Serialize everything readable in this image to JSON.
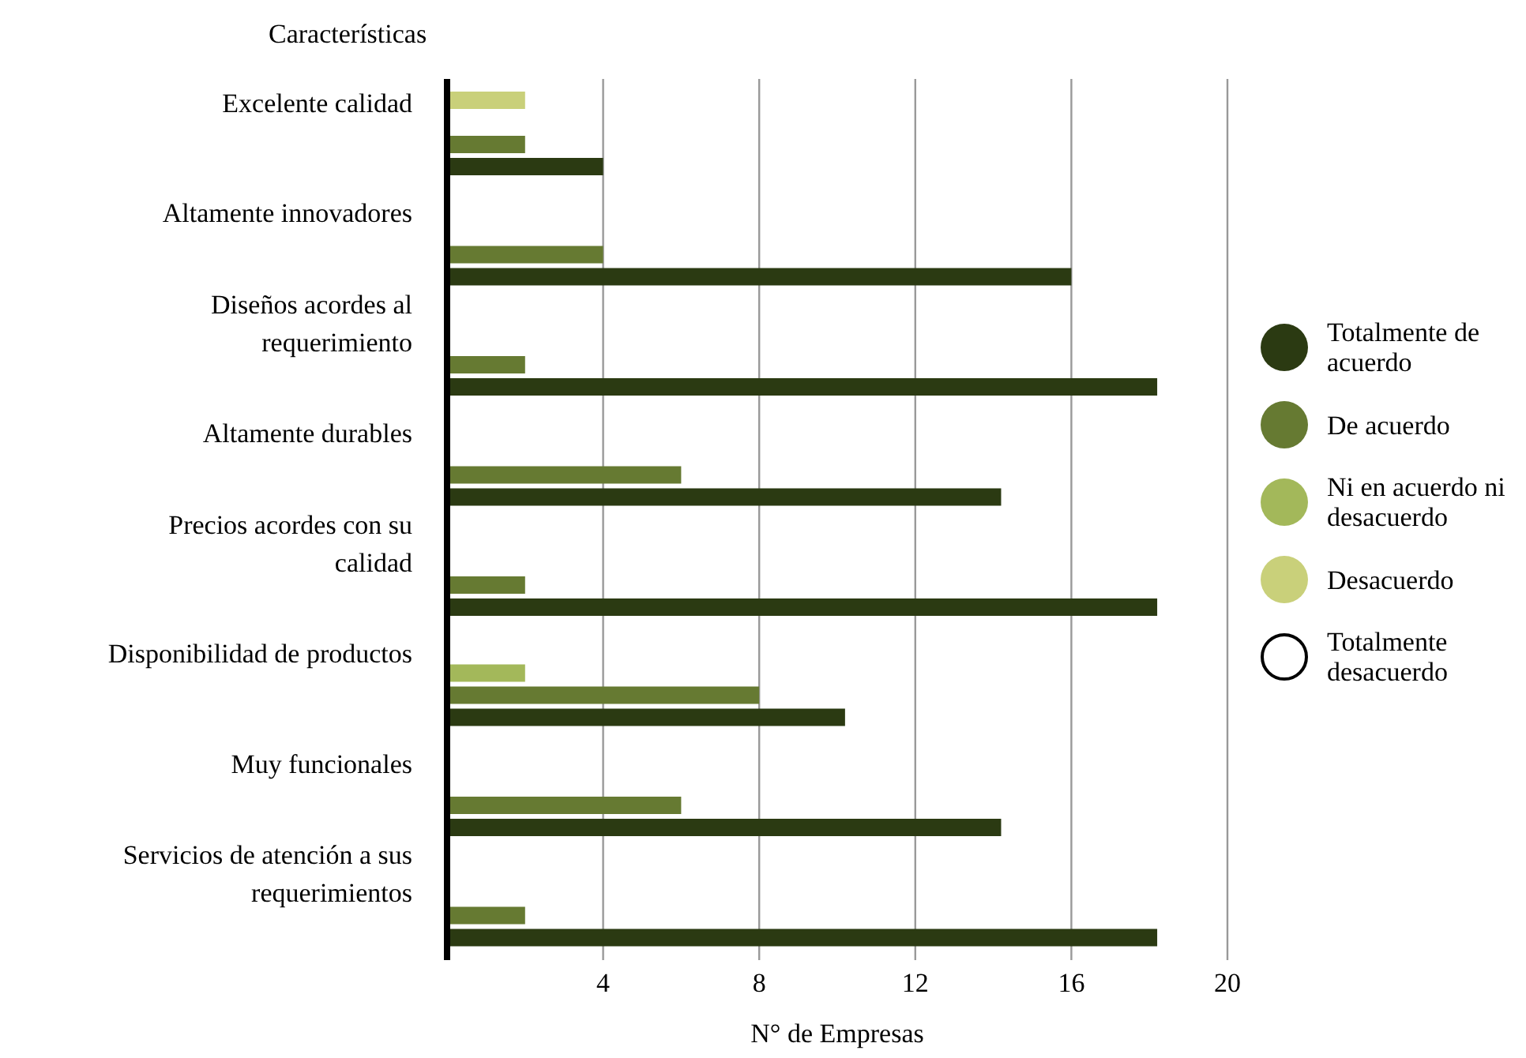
{
  "chart_data": {
    "type": "bar",
    "orientation": "horizontal",
    "ylabel": "Características",
    "xlabel": "N° de Empresas",
    "categories": [
      "Excelente calidad",
      "Altamente innovadores",
      "Diseños acordes al requerimiento",
      "Altamente durables",
      "Precios acordes con su calidad",
      "Disponibilidad de productos",
      "Muy funcionales",
      "Servicios de atención a sus requerimientos"
    ],
    "series": [
      {
        "name": "Totalmente de acuerdo",
        "color": "#2b3a12",
        "values": [
          4,
          16,
          18.2,
          14.2,
          18.2,
          10.2,
          14.2,
          18.2
        ]
      },
      {
        "name": "De acuerdo",
        "color": "#667a32",
        "values": [
          2,
          4,
          2,
          6,
          2,
          8,
          6,
          2
        ]
      },
      {
        "name": "Ni en acuerdo ni desacuerdo",
        "color": "#a3b85a",
        "values": [
          null,
          null,
          null,
          null,
          null,
          2,
          null,
          null
        ]
      },
      {
        "name": "Desacuerdo",
        "color": "#c9d07a",
        "values": [
          2,
          null,
          null,
          null,
          null,
          null,
          null,
          null
        ]
      },
      {
        "name": "Totalmente desacuerdo",
        "color": "#ffffff",
        "values": [
          null,
          null,
          null,
          null,
          null,
          null,
          null,
          null
        ]
      }
    ],
    "xlim": [
      0,
      20
    ],
    "xticks": [
      4,
      8,
      12,
      16,
      20
    ],
    "grid": "x",
    "legend": "right"
  }
}
